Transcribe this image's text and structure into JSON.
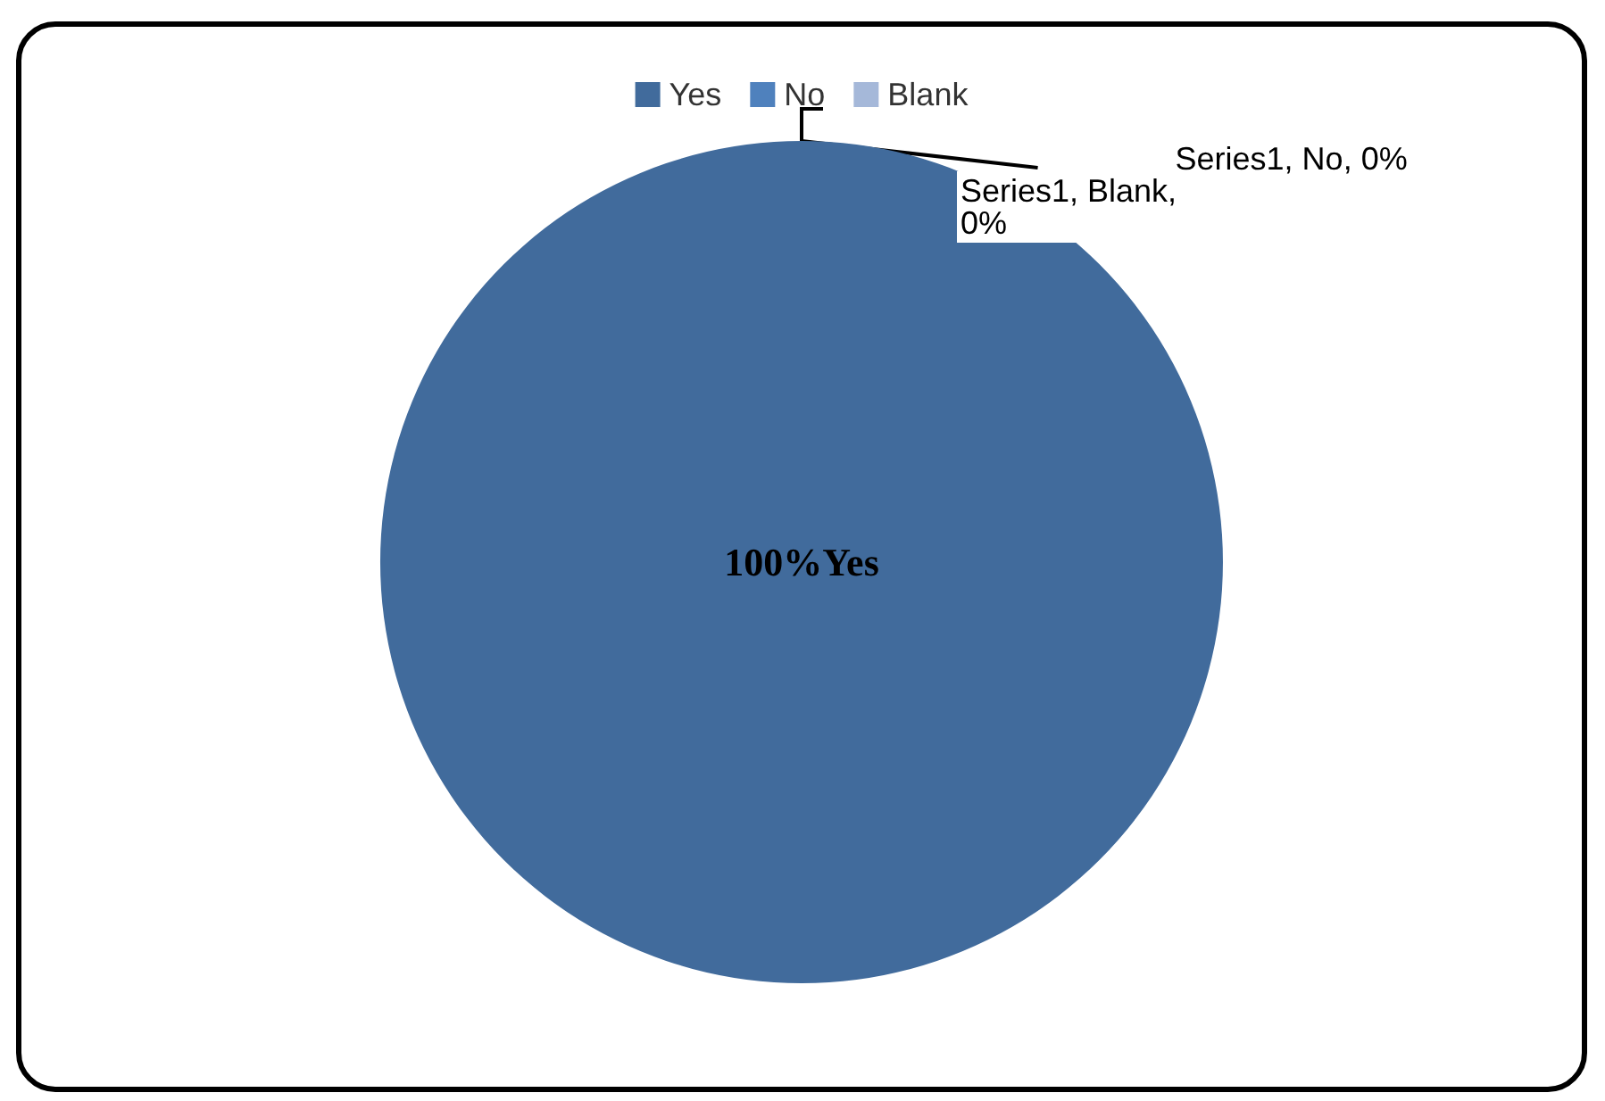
{
  "chart_data": {
    "type": "pie",
    "categories": [
      "Yes",
      "No",
      "Blank"
    ],
    "colors": [
      "#416b9c",
      "#4f81bd",
      "#a5b8d9"
    ],
    "legend": "top",
    "values": [
      100,
      0,
      0
    ],
    "value_labels": [
      "100%Yes",
      "Series1, No, 0%",
      "Series1, Blank, 0%"
    ]
  }
}
